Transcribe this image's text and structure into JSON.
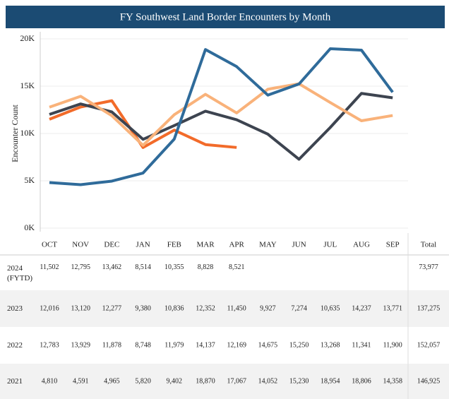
{
  "chart_data": {
    "type": "line",
    "title": "FY Southwest Land Border Encounters by Month",
    "y_label": "Encounter Count",
    "total_label": "Total",
    "categories": [
      "OCT",
      "NOV",
      "DEC",
      "JAN",
      "FEB",
      "MAR",
      "APR",
      "MAY",
      "JUN",
      "JUL",
      "AUG",
      "SEP"
    ],
    "ylim": [
      0,
      20000
    ],
    "yticks": [
      {
        "value": 0,
        "label": "0K"
      },
      {
        "value": 5000,
        "label": "5K"
      },
      {
        "value": 10000,
        "label": "10K"
      },
      {
        "value": 15000,
        "label": "15K"
      },
      {
        "value": 20000,
        "label": "20K"
      }
    ],
    "grid": true,
    "series": [
      {
        "name": "2024 (FYTD)",
        "color": "#f26b2a",
        "values": [
          11502,
          12795,
          13462,
          8514,
          10355,
          8828,
          8521,
          null,
          null,
          null,
          null,
          null
        ],
        "value_labels": [
          "11,502",
          "12,795",
          "13,462",
          "8,514",
          "10,355",
          "8,828",
          "8,521",
          null,
          null,
          null,
          null,
          null
        ],
        "total": {
          "value": 73977,
          "label": "73,977"
        }
      },
      {
        "name": "2023",
        "color": "#3d4450",
        "values": [
          12016,
          13120,
          12277,
          9380,
          10836,
          12352,
          11450,
          9927,
          7274,
          10635,
          14237,
          13771
        ],
        "value_labels": [
          "12,016",
          "13,120",
          "12,277",
          "9,380",
          "10,836",
          "12,352",
          "11,450",
          "9,927",
          "7,274",
          "10,635",
          "14,237",
          "13,771"
        ],
        "total": {
          "value": 137275,
          "label": "137,275"
        }
      },
      {
        "name": "2022",
        "color": "#f9b27a",
        "values": [
          12783,
          13929,
          11878,
          8748,
          11979,
          14137,
          12169,
          14675,
          15250,
          13268,
          11341,
          11900
        ],
        "value_labels": [
          "12,783",
          "13,929",
          "11,878",
          "8,748",
          "11,979",
          "14,137",
          "12,169",
          "14,675",
          "15,250",
          "13,268",
          "11,341",
          "11,900"
        ],
        "total": {
          "value": 152057,
          "label": "152,057"
        }
      },
      {
        "name": "2021",
        "color": "#2f6b9a",
        "values": [
          4810,
          4591,
          4965,
          5820,
          9402,
          18870,
          17067,
          14052,
          15230,
          18954,
          18806,
          14358
        ],
        "value_labels": [
          "4,810",
          "4,591",
          "4,965",
          "5,820",
          "9,402",
          "18,870",
          "17,067",
          "14,052",
          "15,230",
          "18,954",
          "18,806",
          "14,358"
        ],
        "total": {
          "value": 146925,
          "label": "146,925"
        }
      }
    ]
  }
}
